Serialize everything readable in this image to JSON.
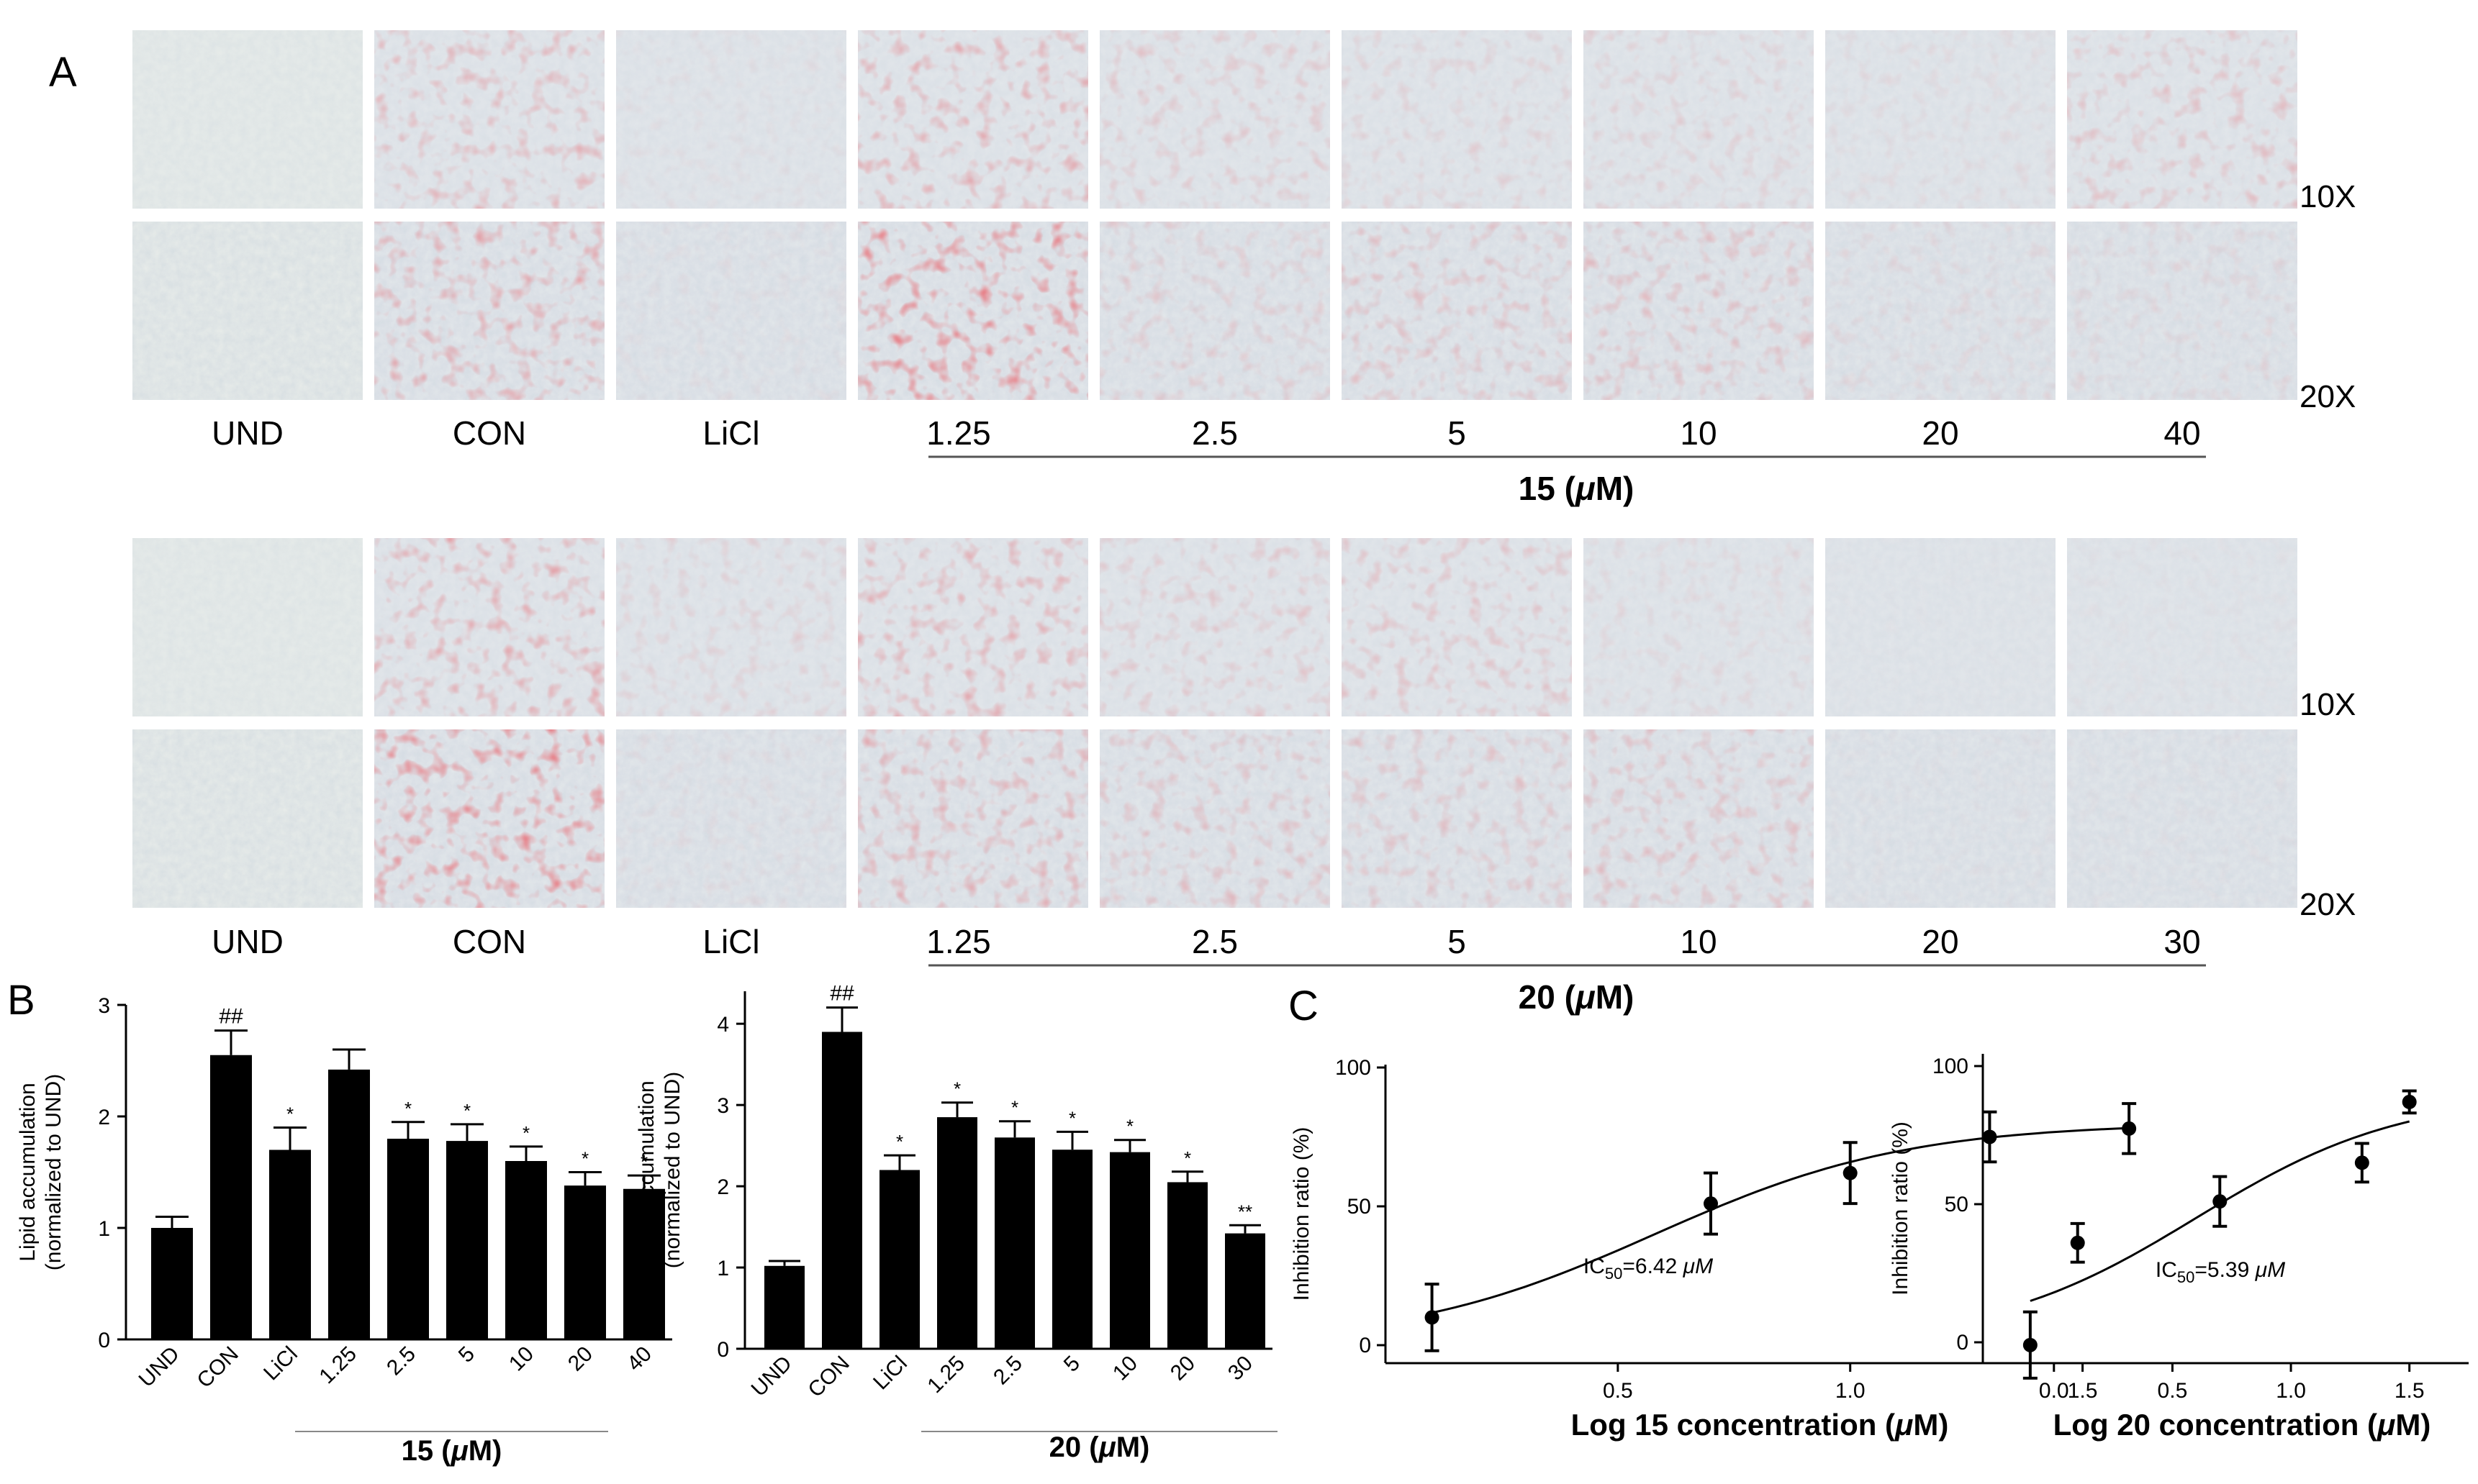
{
  "panelA": {
    "letter": "A",
    "row_mags": [
      "10X",
      "20X"
    ],
    "rows": [
      {
        "labels": [
          "UND",
          "CON",
          "LiCl",
          "1.25",
          "2.5",
          "5",
          "10",
          "20",
          "40"
        ],
        "group_label": "15 (μM)",
        "red10": [
          0,
          0.45,
          0.08,
          0.5,
          0.28,
          0.2,
          0.22,
          0.12,
          0.35
        ],
        "red20": [
          0,
          0.55,
          0.08,
          0.85,
          0.25,
          0.35,
          0.35,
          0.15,
          0.15
        ]
      },
      {
        "labels": [
          "UND",
          "CON",
          "LiCl",
          "1.25",
          "2.5",
          "5",
          "10",
          "20",
          "30"
        ],
        "group_label": "20 (μM)",
        "red10": [
          0,
          0.55,
          0.2,
          0.5,
          0.3,
          0.35,
          0.15,
          0.02,
          0.05
        ],
        "red20": [
          0,
          0.85,
          0.1,
          0.5,
          0.35,
          0.3,
          0.35,
          0.05,
          0.05
        ]
      }
    ]
  },
  "panelB": {
    "letter": "B",
    "charts": [
      {
        "ylabel_line1": "Lipid accumulation",
        "ylabel_line2": "(normalized to UND)",
        "categories": [
          "UND",
          "CON",
          "LiCl",
          "1.25",
          "2.5",
          "5",
          "10",
          "20",
          "40"
        ],
        "values": [
          1.0,
          2.55,
          1.7,
          2.42,
          1.8,
          1.78,
          1.6,
          1.38,
          1.35
        ],
        "errors": [
          0.1,
          0.22,
          0.2,
          0.18,
          0.15,
          0.15,
          0.13,
          0.12,
          0.12
        ],
        "marks": [
          "",
          "##",
          "*",
          "",
          "*",
          "*",
          "*",
          "*",
          "*"
        ],
        "ylim": [
          0,
          3
        ],
        "yticks": [
          "0",
          "1",
          "2",
          "3"
        ],
        "group_label": "15 (μM)"
      },
      {
        "ylabel_line1": "Lipid accumulation",
        "ylabel_line2": "(normalized to UND)",
        "categories": [
          "UND",
          "CON",
          "LiCl",
          "1.25",
          "2.5",
          "5",
          "10",
          "20",
          "30"
        ],
        "values": [
          1.02,
          3.9,
          2.2,
          2.85,
          2.6,
          2.45,
          2.42,
          2.05,
          1.42
        ],
        "errors": [
          0.06,
          0.3,
          0.18,
          0.18,
          0.2,
          0.22,
          0.15,
          0.13,
          0.1
        ],
        "marks": [
          "",
          "##",
          "*",
          "*",
          "*",
          "*",
          "*",
          "*",
          "**"
        ],
        "ylim": [
          0,
          4.4
        ],
        "yticks": [
          "0",
          "1",
          "2",
          "3",
          "4"
        ],
        "group_label": "20 (μM)"
      }
    ]
  },
  "panelC": {
    "letter": "C",
    "charts": [
      {
        "ylabel": "Inhibition ratio (%)",
        "xlabel": "Log 15 concentration (μM)",
        "ic50_sub": "50",
        "ic50_rest": "=6.42",
        "ic50_unit": "μM",
        "xticks": [
          "0.5",
          "1.0",
          "1.5"
        ],
        "yticks": [
          "0",
          "50",
          "100"
        ],
        "x": [
          0.1,
          0.7,
          1.0,
          1.3,
          1.6
        ],
        "y": [
          10,
          51,
          62,
          75,
          78
        ],
        "err": [
          12,
          11,
          11,
          9,
          9
        ],
        "xlim": [
          0,
          1.75
        ],
        "ylim": [
          -12,
          100
        ]
      },
      {
        "ylabel": "Inhibition ratio (%)",
        "xlabel": "Log 20 concentration (μM)",
        "ic50_sub": "50",
        "ic50_rest": "=5.39",
        "ic50_unit": "μM",
        "xticks": [
          "0.0",
          "0.5",
          "1.0",
          "1.5"
        ],
        "yticks": [
          "0",
          "50",
          "100"
        ],
        "x": [
          -0.1,
          0.1,
          0.7,
          1.3,
          1.5
        ],
        "y": [
          -1,
          36,
          51,
          65,
          87
        ],
        "err": [
          12,
          7,
          9,
          7,
          4
        ],
        "xlim": [
          -0.3,
          1.75
        ],
        "ylim": [
          -12,
          100
        ]
      }
    ]
  }
}
